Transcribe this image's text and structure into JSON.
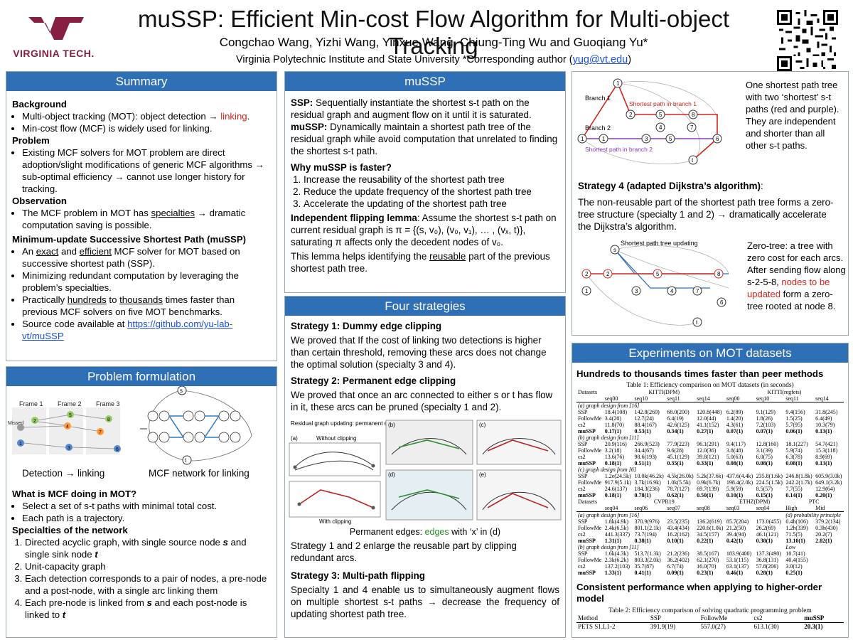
{
  "header": {
    "title": "muSSP: Efficient Min-cost Flow Algorithm for Multi-object Tracking",
    "authors": "Congchao Wang, Yizhi Wang, Yinxue Wang, Chiung-Ting Wu and Guoqiang Yu*",
    "affiliation": "Virginia Polytechnic Institute and State University  *Corresponding author (",
    "email": "yug@vt.edu",
    "affiliation_end": ")",
    "logo_text": "VIRGINIA TECH.",
    "logo_mark": "VT"
  },
  "summary": {
    "title": "Summary",
    "background_h": "Background",
    "bg_1a": "Multi-object tracking (MOT): object detection → ",
    "bg_1b": "linking",
    "bg_1c": ".",
    "bg_2": "Min-cost flow (MCF) is widely used for linking.",
    "problem_h": "Problem",
    "prob_1": "Existing MCF solvers for MOT problem are direct adoption/slight modifications of generic MCF algorithms → sub-optimal efficiency → cannot use longer history for tracking.",
    "observation_h": "Observation",
    "obs_1a": "The MCF problem in MOT has ",
    "obs_1b": "specialties",
    "obs_1c": " → dramatic computation saving is possible.",
    "mussp_h": "Minimum-update Successive Shortest Path (muSSP)",
    "m_1a": "An ",
    "m_1b": "exact",
    "m_1c": " and ",
    "m_1d": "efficient",
    "m_1e": " MCF solver for MOT based on successive shortest path (SSP).",
    "m_2": "Minimizing redundant computation by leveraging the problem’s specialties.",
    "m_3a": "Practically ",
    "m_3b": "hundreds",
    "m_3c": " to ",
    "m_3d": "thousands",
    "m_3e": " times faster than previous MCF solvers on five MOT benchmarks.",
    "m_4a": "Source code available at ",
    "m_4b": "https://github.com/yu-lab-vt/muSSP"
  },
  "problem": {
    "title": "Problem formulation",
    "frames": [
      "Frame 1",
      "Frame 2",
      "Frame 3"
    ],
    "missed": "Missed",
    "cap_left": "Detection → linking",
    "cap_right": "MCF network for linking",
    "what_h": "What is MCF doing in MOT?",
    "what_1": "Select a set of s-t paths with minimal total cost.",
    "what_2": "Each path is a trajectory.",
    "spec_h": "Specialties of the network",
    "spec_1a": "Directed acyclic graph, with single source node ",
    "spec_1b": "s",
    "spec_1c": " and single sink node ",
    "spec_1d": "t",
    "spec_2": "Unit-capacity graph",
    "spec_3": "Each detection corresponds to a pair of nodes, a pre-node and a post-node, with a single arc linking them",
    "spec_4a": "Each pre-node is linked from ",
    "spec_4b": "s",
    "spec_4c": " and each post-node is linked to ",
    "spec_4d": "t"
  },
  "mussp": {
    "title": "muSSP",
    "ssp_b": "SSP:",
    "ssp_t": " Sequentially instantiate the shortest s-t path on the residual graph and augment flow on it until it is saturated.",
    "mu_b": "muSSP:",
    "mu_t": " Dynamically maintain a shortest path tree of the residual graph while avoid computation that unrelated to finding the shortest s-t path.",
    "why_h": "Why muSSP is faster?",
    "why": [
      "Increase the reusability of the shortest path tree",
      "Reduce the update frequency of the shortest path tree",
      "Accelerate the updating of the shortest path tree"
    ],
    "lemma_b": "Independent flipping lemma",
    "lemma_t": ": Assume the shortest s-t path on current residual graph is π = {(s, v₀), (v₀, v₁), … , (vₓ, t)}, saturating π affects only the decedent nodes of v₀.",
    "reuse_a": "This lemma helps identifying the ",
    "reuse_b": "reusable",
    "reuse_c": " part of the previous shortest path tree."
  },
  "strategies": {
    "title": "Four strategies",
    "s1_h": "Strategy 1: Dummy edge clipping",
    "s1_t": "We proved that If the cost of linking two detections is higher than certain threshold, removing these arcs does not change the optimal solution (specialty 3 and 4).",
    "s2_h": "Strategy 2: Permanent edge clipping",
    "s2_t": "We proved that once an arc connected to either s or t has flow in it, these arcs can be pruned (specialty 1 and 2).",
    "fig_title": "Residual graph updating: permanent edge clipping",
    "fig_without": "Without clipping",
    "fig_with": "With clipping",
    "fig_labels": [
      "(a)",
      "(b)",
      "(c)",
      "(d)",
      "(e)"
    ],
    "fig_cap_a": "Permanent edges: ",
    "fig_cap_b": "edges",
    "fig_cap_c": " with ‘x’ in (d)",
    "s12_t": "Strategy 1 and 2 enlarge the reusable part by clipping redundant arcs.",
    "s3_h": "Strategy 3: Multi-path flipping",
    "s3_t": "Specialty 1 and 4 enable us to simultaneously augment flows on multiple shortest s-t paths → decrease the frequency of updating shortest path tree."
  },
  "tree": {
    "note": "One shortest path tree  with two ‘shortest’ s-t paths (red and purple). They are independent and shorter than all other s-t paths.",
    "branch1": "Branch 1",
    "branch2": "Branch 2",
    "sp1": "Shortest path in branch 1",
    "sp2": "Shortest path in branch 2",
    "s4_h": "Strategy 4 (adapted Dijkstra’s algorithm)",
    "s4_colon": ":",
    "s4_t": "The non-reusable part of the shortest path tree forms a zero-tree structure (specialty 1 and 2) → dramatically accelerate the Dijkstra’s algorithm.",
    "fig2_title": "Shortest path tree updating",
    "zt_a": "Zero-tree: a tree with zero cost for each arcs. After sending flow along s-2-5-8, ",
    "zt_b": "nodes to be updated",
    "zt_c": " form a zero-tree rooted at node 8."
  },
  "experiments": {
    "title": "Experiments on MOT datasets",
    "h1": "Hundreds to thousands times faster than peer methods",
    "table1_caption": "Table 1: Efficiency comparison on MOT datasets (in seconds)",
    "t1_group1": [
      "Datasets",
      "KITTI(DPM)",
      "KITTI(regfets)"
    ],
    "t1_cols1": [
      "",
      "seq00",
      "seq10",
      "seq11",
      "seq14",
      "seq00",
      "seq10",
      "seq11",
      "seq14"
    ],
    "t1_sec_a": "(a) graph design from [16]",
    "t1_a": [
      [
        "SSP",
        "18.4(108)",
        "142.8(269)",
        "68.0(200)",
        "120.8(448)",
        "6.2(89)",
        "9.1(129)",
        "9.4(156)",
        "31.8(245)"
      ],
      [
        "FollowMe",
        "3.4(20)",
        "12.7(24)",
        "6.4(19)",
        "12.0(44)",
        "1.4(20)",
        "1.8(26)",
        "1.5(25)",
        "6.4(49)"
      ],
      [
        "cs2",
        "11.8(70)",
        "88.4(167)",
        "42.6(125)",
        "41.1(152)",
        "4.3(61)",
        "7.2(103)",
        "5.7(95)",
        "10.3(79)"
      ],
      [
        "muSSP",
        "0.17(1)",
        "0.53(1)",
        "0.34(1)",
        "0.27(1)",
        "0.07(1)",
        "0.07(1)",
        "0.06(1)",
        "0.13(1)"
      ]
    ],
    "t1_sec_b": "(b) graph design from [11]",
    "t1_b": [
      [
        "SSP",
        "20.9(116)",
        "266.9(523)",
        "77.9(223)",
        "96.1(291)",
        "9.4(117)",
        "12.8(160)",
        "18.1(227)",
        "54.7(421)"
      ],
      [
        "FollowMe",
        "3.2(18)",
        "34.4(67)",
        "9.6(28)",
        "12.0(36)",
        "3.8(48)",
        "3.1(39)",
        "5.9(74)",
        "15.3(118)"
      ],
      [
        "cs2",
        "13.6(76)",
        "98.6(193)",
        "45.1(129)",
        "39.8(121)",
        "5.0(63)",
        "6.0(75)",
        "6.3(78)",
        "8.9(69)"
      ],
      [
        "muSSP",
        "0.18(1)",
        "0.51(1)",
        "0.35(1)",
        "0.33(1)",
        "0.08(1)",
        "0.08(1)",
        "0.08(1)",
        "0.13(1)"
      ]
    ],
    "t1_sec_c": "(c) graph design from [6]",
    "t1_c": [
      [
        "SSP",
        "1.2e(24.5k)",
        "10.0k(46.2k)",
        "4.5k(26.0k)",
        "5.2k(37.6k)",
        "437.6(4.4k)",
        "235.8(1.6k)",
        "246.8(1.8k)",
        "605.9(3.0k)"
      ],
      [
        "FollowMe",
        "917.9(5.1k)",
        "3.7k(16.9k)",
        "1.0k(5.5k)",
        "0.9k(6.7k)",
        "198.4(2.0k)",
        "224.5(1.5k)",
        "242.2(1.7k)",
        "649.1(3.2k)"
      ],
      [
        "cs2",
        "24.6(137)",
        "184.3(236)",
        "78.7(127)",
        "69.7(139)",
        "5.9(59)",
        "8.5(57)",
        "7.7(55)",
        "12.9(64)"
      ],
      [
        "muSSP",
        "0.18(1)",
        "0.78(1)",
        "0.62(1)",
        "0.50(1)",
        "0.10(1)",
        "0.15(1)",
        "0.14(1)",
        "0.20(1)"
      ]
    ],
    "t1_group2": [
      "Datasets",
      "CVPR19",
      "ETHZ(DPM)",
      "PTC"
    ],
    "t1_cols2": [
      "",
      "seq04",
      "seq06",
      "seq07",
      "seq08",
      "seq03",
      "seq04",
      "High",
      "Mid"
    ],
    "t1_sec_d": "(a) graph design from [16]",
    "t1_sec_d2": "(d) probability principle",
    "t1_d": [
      [
        "SSP",
        "1.8k(4.9k)",
        "370.9(976)",
        "23.5(235)",
        "136.2(619)",
        "85.7(204)",
        "173.0(455)",
        "0.4h(106)",
        "379.2(134)"
      ],
      [
        "FollowMe",
        "2.4k(6.5k)",
        "801.1(2.1k)",
        "43.4(434)",
        "220.6(1.0k)",
        "21.2(50)",
        "26.2(69)",
        "1.2h(339)",
        "0.3h(430)"
      ],
      [
        "cs2",
        "441.3(337)",
        "73.7(194)",
        "16.2(162)",
        "34.5(157)",
        "39.4(94)",
        "46.1(121)",
        "71.5(5)",
        "20.2(7)"
      ],
      [
        "muSSP",
        "1.31(1)",
        "0.38(1)",
        "0.10(1)",
        "0.22(1)",
        "0.42(1)",
        "0.38(1)",
        "13.10(1)",
        "2.82(1)"
      ]
    ],
    "t1_sec_e": "(b) graph design from [11]",
    "t1_sec_e2": "Low",
    "t1_e": [
      [
        "SSP",
        "1.6k(4.3k)",
        "513.7(1.3k)",
        "21.2(236)",
        "38.5(167)",
        "183.9(400)",
        "137.3(490)",
        "10.7(41)",
        ""
      ],
      [
        "FollowMe",
        "2.3k(6.2k)",
        "803.3(2.0k)",
        "36.2(402)",
        "62.1(270)",
        "53.1(115)",
        "36.8(131)",
        "40.4(155)",
        ""
      ],
      [
        "cs2",
        "137.2(103)",
        "35.7(87)",
        "6.7(74)",
        "16.0(70)",
        "63.1(137)",
        "57.8(206)",
        "3.0(12)",
        ""
      ],
      [
        "muSSP",
        "1.33(1)",
        "0.41(1)",
        "0.09(1)",
        "0.23(1)",
        "0.46(1)",
        "0.28(1)",
        "0.25(1)",
        ""
      ]
    ],
    "h2": "Consistent performance when applying to higher-order model",
    "table2_caption": "Table 2: Efficiency comparison of solving quadratic programming problem",
    "t2_cols": [
      "Method",
      "SSP",
      "FollowMe",
      "cs2",
      "muSSP"
    ],
    "t2_row": [
      "PETS S1.L1-2",
      "391.9(19)",
      "557.0(27)",
      "613.1(30)",
      "20.3(1)"
    ]
  }
}
